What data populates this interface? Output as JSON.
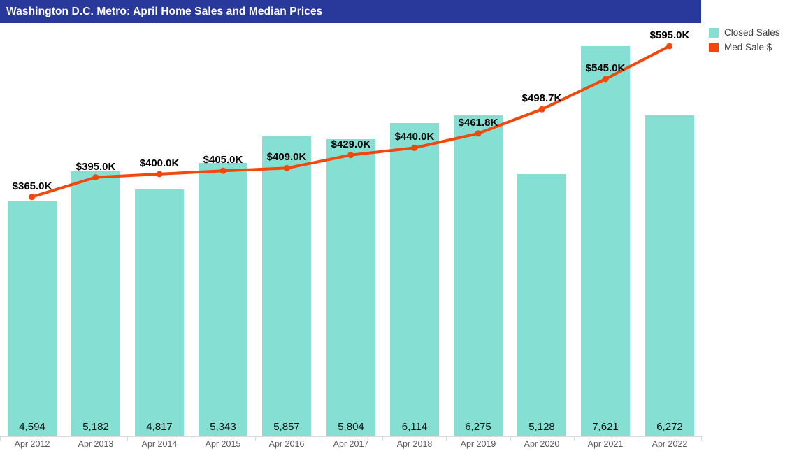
{
  "title": "Washington D.C. Metro: April Home Sales and Median Prices",
  "legend": {
    "items": [
      {
        "label": "Closed Sales",
        "color": "#85E0D3"
      },
      {
        "label": "Med Sale $",
        "color": "#F4470B"
      }
    ]
  },
  "colors": {
    "title_bar": "#28389B",
    "title_text": "#ffffff",
    "bar_fill": "#85E0D3",
    "line": "#F4470B",
    "axis": "#D9D9D9",
    "x_label": "#595959",
    "data_label": "#000000"
  },
  "chart_data": {
    "type": "bar",
    "subtype": "combo-bar-line",
    "title": "Washington D.C. Metro: April Home Sales and Median Prices",
    "categories": [
      "Apr 2012",
      "Apr 2013",
      "Apr 2014",
      "Apr 2015",
      "Apr 2016",
      "Apr 2017",
      "Apr 2018",
      "Apr 2019",
      "Apr 2020",
      "Apr 2021",
      "Apr 2022"
    ],
    "series": [
      {
        "name": "Closed Sales",
        "type": "bar",
        "color": "#85E0D3",
        "values": [
          4594,
          5182,
          4817,
          5343,
          5857,
          5804,
          6114,
          6275,
          5128,
          7621,
          6272
        ],
        "labels": [
          "4,594",
          "5,182",
          "4,817",
          "5,343",
          "5,857",
          "5,804",
          "6,114",
          "6,275",
          "5,128",
          "7,621",
          "6,272"
        ],
        "axis": "primary",
        "ylim": [
          0,
          8000
        ]
      },
      {
        "name": "Med Sale $",
        "type": "line",
        "color": "#F4470B",
        "values_thousands_usd": [
          365.0,
          395.0,
          400.0,
          405.0,
          409.0,
          429.0,
          440.0,
          461.8,
          498.7,
          545.0,
          595.0
        ],
        "labels": [
          "$365.0K",
          "$395.0K",
          "$400.0K",
          "$405.0K",
          "$409.0K",
          "$429.0K",
          "$440.0K",
          "$461.8K",
          "$498.7K",
          "$545.0K",
          "$595.0K"
        ],
        "axis": "secondary",
        "ylim": [
          0,
          650
        ]
      }
    ],
    "xlabel": "",
    "ylabel": "",
    "grid": false,
    "legend_position": "top-right",
    "data_labels": "shown"
  }
}
